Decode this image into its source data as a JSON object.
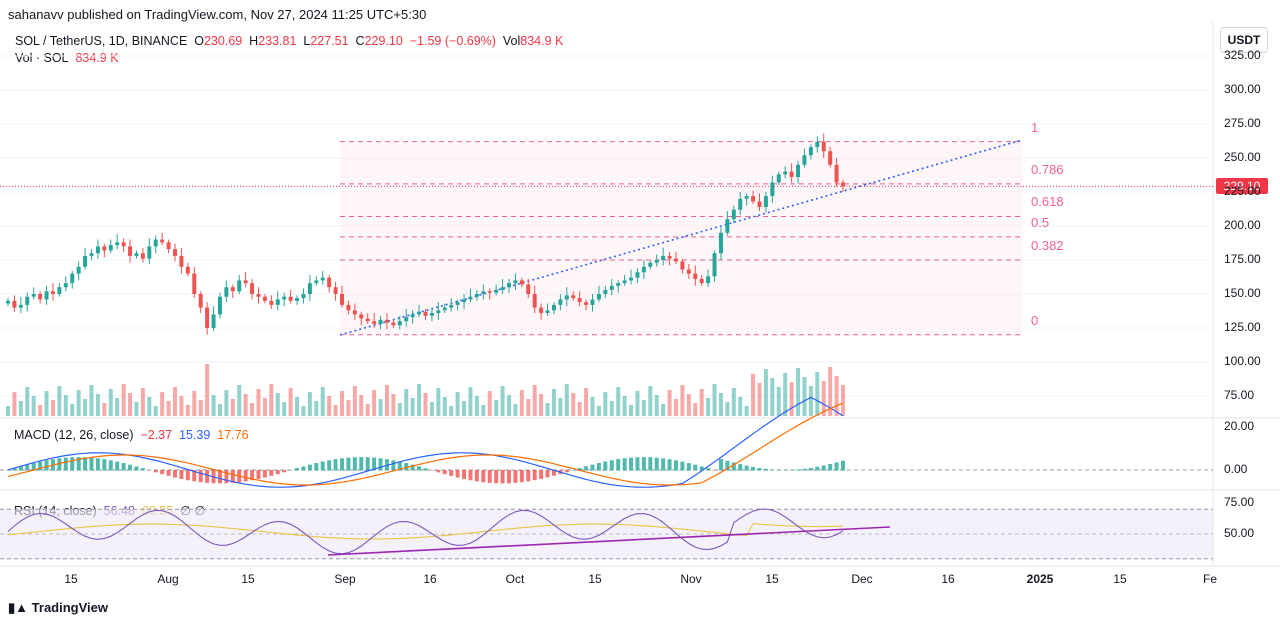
{
  "publish_line": "sahanavv published on TradingView.com, Nov 27, 2024 11:25 UTC+5:30",
  "footer": {
    "brand": "TradingView",
    "logo_icon": "tradingview-logo-icon"
  },
  "currency": "USDT",
  "legend": {
    "symbol": "SOL / TetherUS, 1D, BINANCE",
    "o_label": "O",
    "o_value": "230.69",
    "h_label": "H",
    "h_value": "233.81",
    "l_label": "L",
    "l_value": "227.51",
    "c_label": "C",
    "c_value": "229.10",
    "change": "−1.59 (−0.69%)",
    "vol_label": "Vol",
    "vol_value": "834.9 K",
    "vol_series_label": "Vol · SOL",
    "vol_series_value": "834.9 K"
  },
  "macd_legend": {
    "label": "MACD (12, 26, close)",
    "hist": "−2.37",
    "macd": "15.39",
    "signal": "17.76"
  },
  "rsi_legend": {
    "label": "RSI (14, close)",
    "rsi": "56.48",
    "ma": "68.55",
    "extra1": "∅",
    "extra2": "∅"
  },
  "current_price": "229.10",
  "price_axis": [
    "325.00",
    "300.00",
    "275.00",
    "250.00",
    "225.00",
    "200.00",
    "175.00",
    "150.00",
    "125.00",
    "100.00",
    "75.00"
  ],
  "macd_axis": [
    "20.00",
    "0.00"
  ],
  "rsi_axis": [
    "75.00",
    "50.00"
  ],
  "time_axis": [
    {
      "label": "15",
      "bold": false
    },
    {
      "label": "Aug",
      "bold": false
    },
    {
      "label": "15",
      "bold": false
    },
    {
      "label": "Sep",
      "bold": false
    },
    {
      "label": "16",
      "bold": false
    },
    {
      "label": "Oct",
      "bold": false
    },
    {
      "label": "15",
      "bold": false
    },
    {
      "label": "Nov",
      "bold": false
    },
    {
      "label": "15",
      "bold": false
    },
    {
      "label": "Dec",
      "bold": false
    },
    {
      "label": "16",
      "bold": false
    },
    {
      "label": "2025",
      "bold": true
    },
    {
      "label": "15",
      "bold": false
    },
    {
      "label": "Fe",
      "bold": false
    }
  ],
  "fib_levels": [
    {
      "label": "1",
      "price": 262
    },
    {
      "label": "0.786",
      "price": 231
    },
    {
      "label": "0.618",
      "price": 207
    },
    {
      "label": "0.5",
      "price": 192
    },
    {
      "label": "0.382",
      "price": 175
    },
    {
      "label": "0",
      "price": 120
    }
  ],
  "colors": {
    "up": "#26a69a",
    "down": "#ef5350",
    "fib": "#f06292",
    "trend": "#2962ff",
    "macd": "#2962ff",
    "signal": "#ff6d00",
    "rsi": "#7e57c2",
    "rsi_ma": "#e8c547"
  },
  "chart_data": {
    "type": "candlestick",
    "title": "SOL / TetherUS, 1D, BINANCE",
    "x": [
      "Jul 15",
      "Jul 28",
      "Aug 1",
      "Aug 5",
      "Aug 15",
      "Aug 28",
      "Sep 1",
      "Sep 16",
      "Oct 1",
      "Oct 15",
      "Nov 1",
      "Nov 5",
      "Nov 15",
      "Nov 22",
      "Nov 27"
    ],
    "close": [
      145,
      188,
      175,
      125,
      148,
      162,
      128,
      143,
      152,
      145,
      165,
      160,
      235,
      258,
      229.1
    ],
    "ohlc_last": {
      "open": 230.69,
      "high": 233.81,
      "low": 227.51,
      "close": 229.1
    },
    "ylim": [
      60,
      330
    ],
    "volume_last": "834.9 K",
    "macd": {
      "hist": -2.37,
      "macd": 15.39,
      "signal": 17.76
    },
    "rsi": {
      "rsi": 56.48,
      "ma": 68.55
    }
  }
}
